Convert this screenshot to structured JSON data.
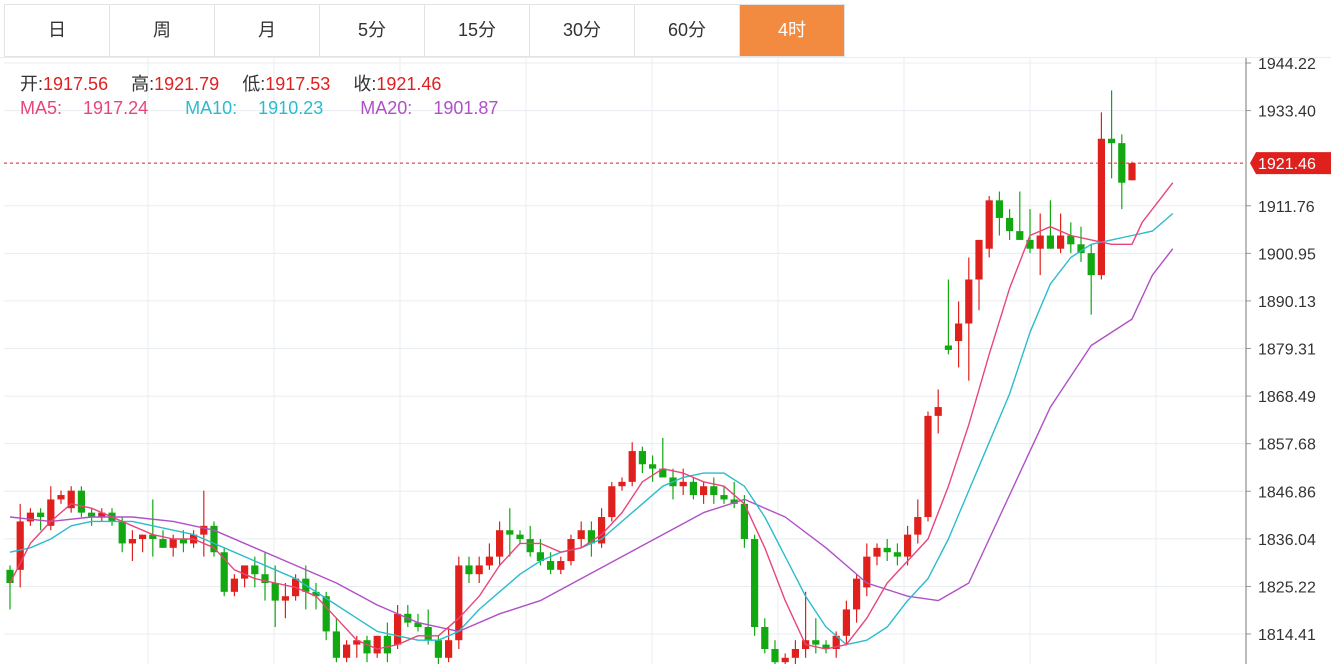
{
  "tabs": [
    {
      "label": "日",
      "active": false
    },
    {
      "label": "周",
      "active": false
    },
    {
      "label": "月",
      "active": false
    },
    {
      "label": "5分",
      "active": false
    },
    {
      "label": "15分",
      "active": false
    },
    {
      "label": "30分",
      "active": false
    },
    {
      "label": "60分",
      "active": false
    },
    {
      "label": "4时",
      "active": true
    }
  ],
  "ohlc": {
    "open_label": "开:",
    "open": "1917.56",
    "high_label": "高:",
    "high": "1921.79",
    "low_label": "低:",
    "low": "1917.53",
    "close_label": "收:",
    "close": "1921.46"
  },
  "ma": {
    "ma5_label": "MA5:",
    "ma5": "1917.24",
    "ma10_label": "MA10:",
    "ma10": "1910.23",
    "ma20_label": "MA20:",
    "ma20": "1901.87"
  },
  "colors": {
    "up": "#e0201c",
    "down": "#12a812",
    "ma5": "#e8457a",
    "ma10": "#2bbccc",
    "ma20": "#b050c8",
    "price_tag": "#e0201c",
    "accent": "#f28a40"
  },
  "chart_data": {
    "type": "candlestick",
    "y_ticks": [
      "1944.22",
      "1933.40",
      "1911.76",
      "1900.95",
      "1890.13",
      "1879.31",
      "1868.49",
      "1857.68",
      "1846.86",
      "1836.04",
      "1825.22",
      "1814.41"
    ],
    "ylim": [
      1811,
      1949
    ],
    "current_price": "1921.46",
    "candles": [
      [
        1829,
        1830,
        1820,
        1826
      ],
      [
        1829,
        1844,
        1825,
        1840
      ],
      [
        1840,
        1843,
        1839,
        1842
      ],
      [
        1842,
        1843,
        1838,
        1841
      ],
      [
        1839,
        1848,
        1838,
        1845
      ],
      [
        1845,
        1847,
        1844,
        1846
      ],
      [
        1843,
        1848,
        1842,
        1847
      ],
      [
        1847,
        1848,
        1841,
        1842
      ],
      [
        1842,
        1843,
        1839,
        1841
      ],
      [
        1841,
        1843,
        1840,
        1842
      ],
      [
        1842,
        1843,
        1839,
        1840
      ],
      [
        1840,
        1841,
        1833,
        1835
      ],
      [
        1835,
        1838,
        1831,
        1836
      ],
      [
        1836,
        1837,
        1833,
        1837
      ],
      [
        1837,
        1845,
        1832,
        1836
      ],
      [
        1836,
        1838,
        1834,
        1834
      ],
      [
        1834,
        1837,
        1832,
        1836
      ],
      [
        1836,
        1838,
        1833,
        1835
      ],
      [
        1835,
        1838,
        1834,
        1837
      ],
      [
        1837,
        1847,
        1832,
        1839
      ],
      [
        1839,
        1840,
        1832,
        1833
      ],
      [
        1833,
        1834,
        1823,
        1824
      ],
      [
        1824,
        1828,
        1823,
        1827
      ],
      [
        1827,
        1830,
        1825,
        1830
      ],
      [
        1830,
        1832,
        1825,
        1828
      ],
      [
        1828,
        1833,
        1822,
        1826
      ],
      [
        1826,
        1830,
        1816,
        1822
      ],
      [
        1822,
        1826,
        1818,
        1823
      ],
      [
        1823,
        1828,
        1822,
        1827
      ],
      [
        1827,
        1830,
        1820,
        1824
      ],
      [
        1824,
        1826,
        1820,
        1823
      ],
      [
        1823,
        1824,
        1813,
        1815
      ],
      [
        1815,
        1818,
        1808,
        1809
      ],
      [
        1809,
        1813,
        1808,
        1812
      ],
      [
        1812,
        1814,
        1809,
        1813
      ],
      [
        1813,
        1814,
        1808,
        1810
      ],
      [
        1810,
        1814,
        1809,
        1814
      ],
      [
        1814,
        1817,
        1808,
        1810
      ],
      [
        1812,
        1821,
        1811,
        1819
      ],
      [
        1819,
        1821,
        1816,
        1817
      ],
      [
        1817,
        1819,
        1815,
        1816
      ],
      [
        1816,
        1820,
        1812,
        1813
      ],
      [
        1813,
        1814,
        1807,
        1809
      ],
      [
        1809,
        1816,
        1808,
        1813
      ],
      [
        1813,
        1832,
        1811,
        1830
      ],
      [
        1830,
        1832,
        1826,
        1828
      ],
      [
        1828,
        1832,
        1826,
        1830
      ],
      [
        1830,
        1835,
        1829,
        1832
      ],
      [
        1832,
        1840,
        1830,
        1838
      ],
      [
        1838,
        1843,
        1832,
        1837
      ],
      [
        1837,
        1838,
        1835,
        1836
      ],
      [
        1836,
        1839,
        1832,
        1833
      ],
      [
        1833,
        1836,
        1830,
        1831
      ],
      [
        1831,
        1833,
        1828,
        1829
      ],
      [
        1829,
        1832,
        1828,
        1831
      ],
      [
        1831,
        1837,
        1830,
        1836
      ],
      [
        1836,
        1840,
        1834,
        1838
      ],
      [
        1838,
        1840,
        1832,
        1835
      ],
      [
        1835,
        1843,
        1834,
        1841
      ],
      [
        1841,
        1849,
        1840,
        1848
      ],
      [
        1848,
        1850,
        1847,
        1849
      ],
      [
        1849,
        1858,
        1848,
        1856
      ],
      [
        1856,
        1857,
        1851,
        1853
      ],
      [
        1853,
        1855,
        1849,
        1852
      ],
      [
        1852,
        1859,
        1851,
        1850
      ],
      [
        1850,
        1852,
        1845,
        1848
      ],
      [
        1848,
        1852,
        1846,
        1849
      ],
      [
        1849,
        1850,
        1845,
        1846
      ],
      [
        1846,
        1849,
        1844,
        1848
      ],
      [
        1848,
        1850,
        1844,
        1846
      ],
      [
        1846,
        1848,
        1844,
        1845
      ],
      [
        1845,
        1849,
        1843,
        1844
      ],
      [
        1844,
        1846,
        1834,
        1836
      ],
      [
        1836,
        1837,
        1814,
        1816
      ],
      [
        1816,
        1818,
        1810,
        1811
      ],
      [
        1811,
        1813,
        1807,
        1808
      ],
      [
        1808,
        1810,
        1805,
        1809
      ],
      [
        1809,
        1813,
        1807,
        1811
      ],
      [
        1811,
        1824,
        1809,
        1813
      ],
      [
        1813,
        1818,
        1810,
        1812
      ],
      [
        1812,
        1813,
        1810,
        1811
      ],
      [
        1811,
        1815,
        1809,
        1814
      ],
      [
        1814,
        1822,
        1812,
        1820
      ],
      [
        1820,
        1828,
        1817,
        1827
      ],
      [
        1825,
        1835,
        1823,
        1832
      ],
      [
        1832,
        1835,
        1830,
        1834
      ],
      [
        1834,
        1836,
        1831,
        1833
      ],
      [
        1833,
        1835,
        1830,
        1832
      ],
      [
        1832,
        1839,
        1830,
        1837
      ],
      [
        1837,
        1845,
        1835,
        1841
      ],
      [
        1841,
        1865,
        1840,
        1864
      ],
      [
        1864,
        1870,
        1860,
        1866
      ],
      [
        1880,
        1895,
        1878,
        1879
      ],
      [
        1881,
        1890,
        1875,
        1885
      ],
      [
        1885,
        1900,
        1872,
        1895
      ],
      [
        1895,
        1904,
        1888,
        1904
      ],
      [
        1902,
        1914,
        1900,
        1913
      ],
      [
        1913,
        1915,
        1905,
        1909
      ],
      [
        1909,
        1911,
        1904,
        1906
      ],
      [
        1906,
        1915,
        1904,
        1904
      ],
      [
        1904,
        1911,
        1901,
        1902
      ],
      [
        1902,
        1910,
        1896,
        1905
      ],
      [
        1905,
        1913,
        1902,
        1902
      ],
      [
        1902,
        1910,
        1901,
        1905
      ],
      [
        1905,
        1908,
        1901,
        1903
      ],
      [
        1903,
        1907,
        1899,
        1901
      ],
      [
        1901,
        1903,
        1887,
        1896
      ],
      [
        1896,
        1933,
        1895,
        1927
      ],
      [
        1927,
        1938,
        1918,
        1926
      ],
      [
        1926,
        1928,
        1911,
        1917
      ],
      [
        1917.56,
        1921.79,
        1917.53,
        1921.46
      ]
    ],
    "ma5": [
      [
        0,
        1826
      ],
      [
        2,
        1835
      ],
      [
        4,
        1840
      ],
      [
        6,
        1844
      ],
      [
        8,
        1843
      ],
      [
        10,
        1841
      ],
      [
        12,
        1839
      ],
      [
        14,
        1837
      ],
      [
        16,
        1836
      ],
      [
        18,
        1836
      ],
      [
        20,
        1834
      ],
      [
        22,
        1829
      ],
      [
        24,
        1827
      ],
      [
        26,
        1826
      ],
      [
        28,
        1825
      ],
      [
        30,
        1823
      ],
      [
        32,
        1818
      ],
      [
        34,
        1813
      ],
      [
        36,
        1811
      ],
      [
        38,
        1812
      ],
      [
        40,
        1814
      ],
      [
        42,
        1814
      ],
      [
        44,
        1818
      ],
      [
        46,
        1823
      ],
      [
        48,
        1830
      ],
      [
        50,
        1835
      ],
      [
        52,
        1835
      ],
      [
        54,
        1833
      ],
      [
        56,
        1834
      ],
      [
        58,
        1837
      ],
      [
        60,
        1842
      ],
      [
        62,
        1849
      ],
      [
        64,
        1852
      ],
      [
        66,
        1851
      ],
      [
        68,
        1849
      ],
      [
        70,
        1848
      ],
      [
        72,
        1844
      ],
      [
        74,
        1834
      ],
      [
        76,
        1822
      ],
      [
        78,
        1812
      ],
      [
        80,
        1811
      ],
      [
        82,
        1812
      ],
      [
        84,
        1818
      ],
      [
        86,
        1826
      ],
      [
        88,
        1831
      ],
      [
        90,
        1836
      ],
      [
        92,
        1848
      ],
      [
        94,
        1862
      ],
      [
        96,
        1878
      ],
      [
        98,
        1893
      ],
      [
        100,
        1905
      ],
      [
        102,
        1907
      ],
      [
        104,
        1905
      ],
      [
        106,
        1904
      ],
      [
        108,
        1903
      ],
      [
        110,
        1903
      ],
      [
        111,
        1908
      ],
      [
        113,
        1914
      ],
      [
        114,
        1917
      ]
    ],
    "ma10": [
      [
        0,
        1833
      ],
      [
        2,
        1834
      ],
      [
        4,
        1836
      ],
      [
        6,
        1839
      ],
      [
        8,
        1840
      ],
      [
        10,
        1840
      ],
      [
        12,
        1840
      ],
      [
        14,
        1839
      ],
      [
        16,
        1838
      ],
      [
        18,
        1837
      ],
      [
        20,
        1835
      ],
      [
        22,
        1833
      ],
      [
        24,
        1831
      ],
      [
        26,
        1829
      ],
      [
        28,
        1827
      ],
      [
        30,
        1824
      ],
      [
        32,
        1821
      ],
      [
        34,
        1818
      ],
      [
        36,
        1815
      ],
      [
        38,
        1814
      ],
      [
        40,
        1813
      ],
      [
        42,
        1813
      ],
      [
        44,
        1815
      ],
      [
        46,
        1820
      ],
      [
        48,
        1824
      ],
      [
        50,
        1828
      ],
      [
        52,
        1831
      ],
      [
        54,
        1833
      ],
      [
        56,
        1834
      ],
      [
        58,
        1836
      ],
      [
        60,
        1840
      ],
      [
        62,
        1844
      ],
      [
        64,
        1848
      ],
      [
        66,
        1850
      ],
      [
        68,
        1851
      ],
      [
        70,
        1851
      ],
      [
        72,
        1848
      ],
      [
        74,
        1841
      ],
      [
        76,
        1832
      ],
      [
        78,
        1823
      ],
      [
        80,
        1816
      ],
      [
        82,
        1812
      ],
      [
        84,
        1813
      ],
      [
        86,
        1816
      ],
      [
        88,
        1822
      ],
      [
        90,
        1827
      ],
      [
        92,
        1836
      ],
      [
        94,
        1847
      ],
      [
        96,
        1858
      ],
      [
        98,
        1869
      ],
      [
        100,
        1883
      ],
      [
        102,
        1894
      ],
      [
        104,
        1900
      ],
      [
        106,
        1903
      ],
      [
        108,
        1904
      ],
      [
        110,
        1905
      ],
      [
        112,
        1906
      ],
      [
        114,
        1910
      ]
    ],
    "ma20": [
      [
        0,
        1841
      ],
      [
        4,
        1840
      ],
      [
        8,
        1841
      ],
      [
        12,
        1841
      ],
      [
        16,
        1840
      ],
      [
        20,
        1838
      ],
      [
        24,
        1834
      ],
      [
        28,
        1830
      ],
      [
        32,
        1826
      ],
      [
        36,
        1821
      ],
      [
        40,
        1817
      ],
      [
        44,
        1815
      ],
      [
        48,
        1819
      ],
      [
        52,
        1822
      ],
      [
        56,
        1827
      ],
      [
        60,
        1832
      ],
      [
        64,
        1837
      ],
      [
        68,
        1842
      ],
      [
        72,
        1845
      ],
      [
        76,
        1841
      ],
      [
        80,
        1834
      ],
      [
        84,
        1826
      ],
      [
        88,
        1823
      ],
      [
        91,
        1822
      ],
      [
        94,
        1826
      ],
      [
        98,
        1846
      ],
      [
        102,
        1866
      ],
      [
        106,
        1880
      ],
      [
        110,
        1886
      ],
      [
        112,
        1896
      ],
      [
        114,
        1902
      ]
    ]
  }
}
